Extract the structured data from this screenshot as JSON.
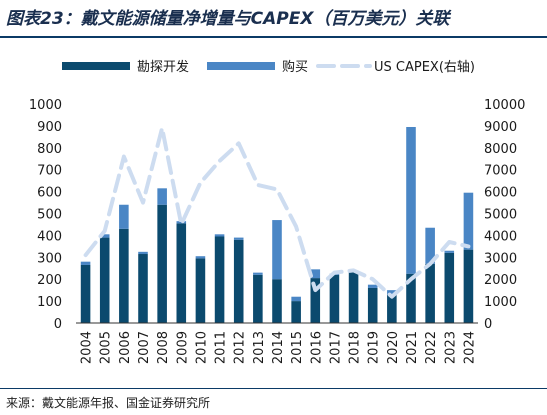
{
  "title": "图表23：戴文能源储量净增量与CAPEX（百万美元）关联",
  "source": "来源：戴文能源年报、国金证券研究所",
  "colors": {
    "exploration": "#0b4a6e",
    "acquisition": "#4a86c5",
    "capex": "#cddcf0",
    "text": "#1a1a1a",
    "title": "#1a2f4f",
    "rule": "#0b3a66"
  },
  "legend": {
    "exploration": "勘探开发",
    "acquisition": "购买",
    "capex": "US CAPEX(右轴)"
  },
  "chart_data": {
    "type": "bar",
    "title": "戴文能源储量净增量与CAPEX（百万美元）关联",
    "categories": [
      "2004",
      "2005",
      "2006",
      "2007",
      "2008",
      "2009",
      "2010",
      "2011",
      "2012",
      "2013",
      "2014",
      "2015",
      "2016",
      "2017",
      "2018",
      "2019",
      "2020",
      "2021",
      "2022",
      "2023",
      "2024"
    ],
    "series": [
      {
        "name": "勘探开发",
        "kind": "stacked-bar",
        "axis": "left",
        "values": [
          265,
          390,
          430,
          315,
          540,
          455,
          295,
          395,
          380,
          220,
          200,
          100,
          205,
          220,
          235,
          160,
          130,
          225,
          270,
          320,
          335
        ]
      },
      {
        "name": "购买",
        "kind": "stacked-bar",
        "axis": "left",
        "values": [
          15,
          15,
          110,
          10,
          75,
          10,
          10,
          10,
          10,
          10,
          270,
          20,
          40,
          5,
          5,
          15,
          20,
          670,
          165,
          10,
          260
        ]
      },
      {
        "name": "US CAPEX(右轴)",
        "kind": "dashed-line",
        "axis": "right",
        "values": [
          3100,
          4200,
          7600,
          5500,
          8900,
          4500,
          6400,
          7400,
          8200,
          6300,
          6100,
          4400,
          1500,
          2300,
          2400,
          2000,
          1200,
          2000,
          2700,
          3700,
          3500
        ]
      }
    ],
    "ylim_left": [
      0,
      1000
    ],
    "yticks_left": [
      "0",
      "100",
      "200",
      "300",
      "400",
      "500",
      "600",
      "700",
      "800",
      "900",
      "1000"
    ],
    "ylim_right": [
      0,
      10000
    ],
    "yticks_right": [
      "0",
      "1000",
      "2000",
      "3000",
      "4000",
      "5000",
      "6000",
      "7000",
      "8000",
      "9000",
      "10000"
    ],
    "legend_position": "top",
    "grid": false
  }
}
